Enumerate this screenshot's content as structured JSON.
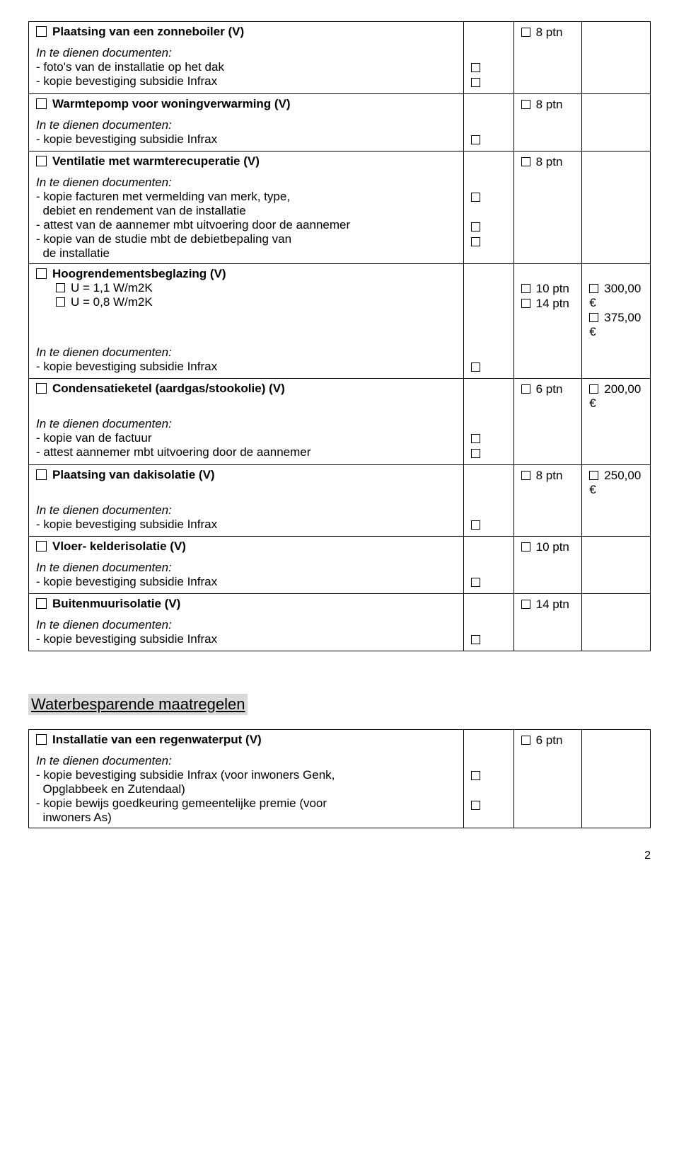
{
  "labels": {
    "docs_header": "In te dienen documenten:"
  },
  "section1": {
    "i1": {
      "title": "Plaatsing van een zonneboiler (V)",
      "docs": [
        "- foto's van de installatie op het dak",
        "- kopie bevestiging subsidie Infrax"
      ],
      "ptn": "8 ptn"
    },
    "i2": {
      "title": "Warmtepomp voor woningverwarming (V)",
      "docs": [
        "- kopie bevestiging subsidie Infrax"
      ],
      "ptn": "8 ptn"
    },
    "i3": {
      "title": "Ventilatie met warmterecuperatie (V)",
      "docs": [
        "- kopie facturen met vermelding van merk, type,",
        "  debiet en rendement van de installatie",
        "- attest van de aannemer mbt uitvoering door de aannemer",
        "- kopie van de studie mbt de debietbepaling van",
        "  de installatie"
      ],
      "ptn": "8 ptn"
    },
    "i4": {
      "title": "Hoogrendementsbeglazing (V)",
      "sub1": "U = 1,1 W/m2K",
      "sub2": "U = 0,8 W/m2K",
      "docs": [
        "- kopie bevestiging subsidie Infrax"
      ],
      "ptn1": "10 ptn",
      "ptn2": "14 ptn",
      "eur1": "300,00 €",
      "eur2": "375,00 €"
    },
    "i5": {
      "title": "Condensatieketel (aardgas/stookolie) (V)",
      "docs": [
        "- kopie van de factuur",
        "- attest aannemer mbt uitvoering door de aannemer"
      ],
      "ptn": "6 ptn",
      "eur": "200,00 €"
    },
    "i6": {
      "title": "Plaatsing van dakisolatie (V)",
      "docs": [
        "- kopie bevestiging subsidie Infrax"
      ],
      "ptn": "8 ptn",
      "eur": "250,00 €"
    },
    "i7": {
      "title": "Vloer- kelderisolatie (V)",
      "docs": [
        "- kopie bevestiging subsidie Infrax"
      ],
      "ptn": "10 ptn"
    },
    "i8": {
      "title": "Buitenmuurisolatie (V)",
      "docs": [
        "- kopie bevestiging subsidie Infrax"
      ],
      "ptn": "14 ptn"
    }
  },
  "section2_heading": "Waterbesparende maatregelen",
  "section2": {
    "i1": {
      "title": "Installatie van een regenwaterput (V)",
      "docs": [
        "- kopie bevestiging subsidie Infrax (voor inwoners Genk,",
        "  Opglabbeek en Zutendaal)",
        "- kopie bewijs goedkeuring gemeentelijke premie (voor",
        "  inwoners As)"
      ],
      "ptn": "6 ptn"
    }
  },
  "page_number": "2"
}
